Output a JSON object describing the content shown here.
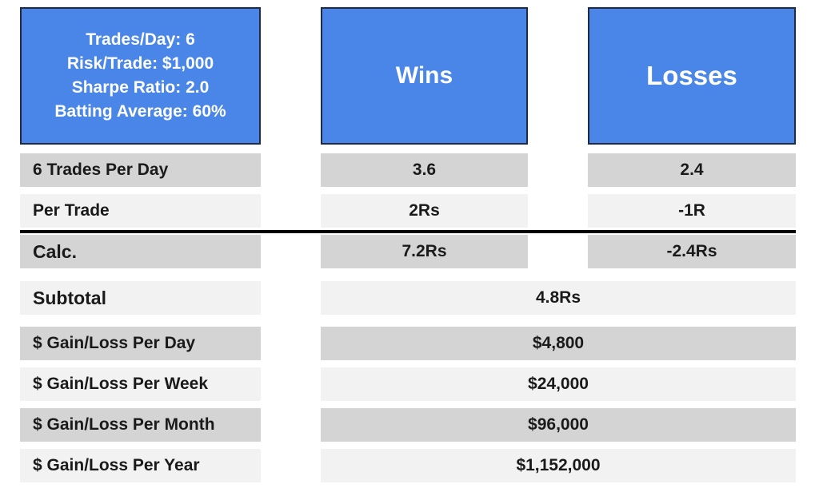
{
  "header": {
    "info_lines": [
      "Trades/Day: 6",
      "Risk/Trade: $1,000",
      "Sharpe Ratio: 2.0",
      "Batting Average: 60%"
    ],
    "wins_label": "Wins",
    "losses_label": "Losses"
  },
  "rows": [
    {
      "label": "6 Trades Per Day",
      "wins": "3.6",
      "losses": "2.4"
    },
    {
      "label": "Per Trade",
      "wins": "2Rs",
      "losses": "-1R"
    },
    {
      "label": "Calc.",
      "wins": "7.2Rs",
      "losses": "-2.4Rs"
    }
  ],
  "summary": [
    {
      "label": "Subtotal",
      "value": "4.8Rs"
    },
    {
      "label": "$ Gain/Loss Per Day",
      "value": "$4,800"
    },
    {
      "label": "$ Gain/Loss Per Week",
      "value": "$24,000"
    },
    {
      "label": "$ Gain/Loss Per Month",
      "value": "$96,000"
    },
    {
      "label": "$ Gain/Loss Per Year",
      "value": "$1,152,000"
    }
  ],
  "colors": {
    "header_blue": "#4a86e8",
    "row_dark": "#d4d4d4",
    "row_light": "#f2f2f2"
  }
}
